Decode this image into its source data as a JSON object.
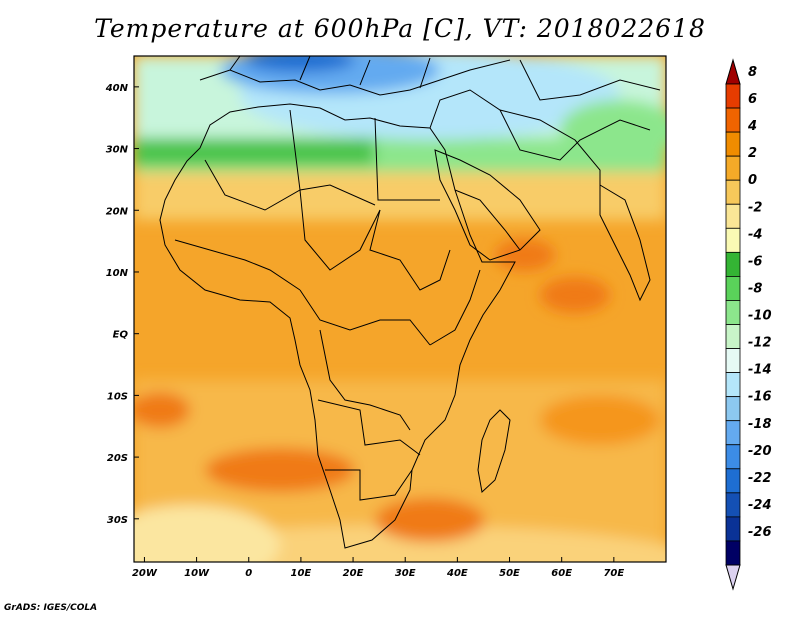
{
  "title": "Temperature at 600hPa [C], VT: 2018022618",
  "credit": "GrADS: IGES/COLA",
  "map": {
    "lon_labels": [
      "20W",
      "10W",
      "0",
      "10E",
      "20E",
      "30E",
      "40E",
      "50E",
      "60E",
      "70E"
    ],
    "lat_labels": [
      "40N",
      "30N",
      "20N",
      "10N",
      "EQ",
      "10S",
      "20S",
      "30S"
    ],
    "lon_range": [
      -22,
      80
    ],
    "lat_range": [
      -37,
      45
    ]
  },
  "colorbar": {
    "labels": [
      "8",
      "6",
      "4",
      "2",
      "0",
      "-2",
      "-4",
      "-6",
      "-8",
      "-10",
      "-12",
      "-14",
      "-16",
      "-18",
      "-20",
      "-22",
      "-24",
      "-26"
    ],
    "colors": [
      "#a00000",
      "#e63c00",
      "#f06400",
      "#f08c00",
      "#f5aa28",
      "#f7c85a",
      "#fae696",
      "#fafab4",
      "#34b434",
      "#5ad25a",
      "#8ce68c",
      "#c8f5c8",
      "#e6faf5",
      "#b4e6fa",
      "#8cc8f0",
      "#64aaf0",
      "#3c8ce6",
      "#1e6ed2",
      "#1450b4",
      "#0a3296",
      "#000064",
      "#dcd2f0"
    ]
  }
}
